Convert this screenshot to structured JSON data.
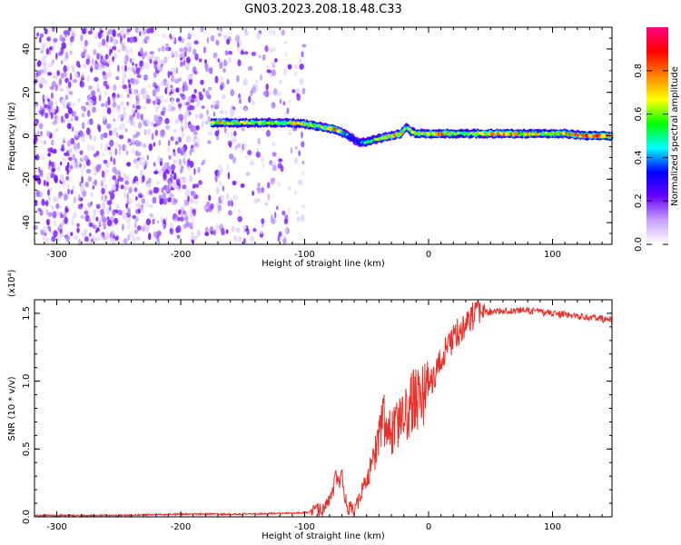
{
  "title": "GN03.2023.208.18.48.C33",
  "chart_data": [
    {
      "type": "heatmap",
      "xlabel": "Height of straight line (km)",
      "ylabel": "Frequency (Hz)",
      "xlim": [
        -318,
        148
      ],
      "ylim": [
        -50,
        50
      ],
      "xticks": [
        -300,
        -200,
        -100,
        0,
        100
      ],
      "xtick_labels": [
        "-300",
        "-200",
        "-100",
        "0",
        "100"
      ],
      "yticks": [
        -40,
        -20,
        0,
        20,
        40
      ],
      "ytick_labels": [
        "-40",
        "-20",
        "0",
        "20",
        "40"
      ],
      "colorbar": {
        "label": "Normalized spectral amplitude",
        "range": [
          0,
          1
        ],
        "ticks": [
          0.0,
          0.2,
          0.4,
          0.6,
          0.8
        ],
        "tick_labels": [
          "0.0",
          "0.2",
          "0.4",
          "0.6",
          "0.8"
        ],
        "colors": [
          "#ffffff",
          "#c8a0ff",
          "#6600ff",
          "#0000ff",
          "#00ffff",
          "#00ff00",
          "#ffff00",
          "#ff8000",
          "#ff0000",
          "#ff0080"
        ]
      },
      "noise_region_x": [
        -318,
        -100
      ],
      "trace": {
        "x": [
          -175,
          -150,
          -125,
          -110,
          -95,
          -85,
          -75,
          -68,
          -62,
          -57,
          -52,
          -45,
          -38,
          -30,
          -22,
          -18,
          -14,
          -10,
          -5,
          0,
          10,
          25,
          40,
          60,
          80,
          95,
          110,
          125,
          148
        ],
        "frequency": [
          6,
          6,
          6,
          6,
          5,
          4,
          3,
          1,
          -1,
          -3,
          -3,
          -2,
          -1,
          0,
          1,
          4,
          2,
          1,
          1,
          1,
          1,
          1,
          1,
          1,
          1,
          1,
          1,
          0,
          0
        ],
        "amplitude": [
          0.7,
          0.6,
          0.55,
          0.65,
          0.6,
          0.6,
          0.7,
          0.45,
          0.35,
          0.3,
          0.4,
          0.5,
          0.55,
          0.65,
          0.75,
          0.5,
          0.6,
          0.65,
          0.6,
          0.6,
          0.7,
          0.55,
          0.6,
          0.75,
          0.65,
          0.6,
          0.7,
          0.8,
          0.85
        ]
      }
    },
    {
      "type": "line",
      "xlabel": "Height of straight line (km)",
      "ylabel": "SNR (10 * v/v)",
      "y_multiplier": "(x10⁴)",
      "xlim": [
        -318,
        148
      ],
      "ylim": [
        0,
        1.6
      ],
      "xticks": [
        -300,
        -200,
        -100,
        0,
        100
      ],
      "xtick_labels": [
        "-300",
        "-200",
        "-100",
        "0",
        "100"
      ],
      "yticks": [
        0.0,
        0.5,
        1.0,
        1.5
      ],
      "ytick_labels": [
        "0.0",
        "0.5",
        "1.0",
        "1.5"
      ],
      "color": "#e8312a",
      "series": [
        {
          "name": "SNR",
          "x": [
            -318,
            -250,
            -200,
            -150,
            -100,
            -85,
            -80,
            -77,
            -75,
            -72,
            -70,
            -68,
            -65,
            -60,
            -57,
            -55,
            -50,
            -45,
            -40,
            -37,
            -35,
            -30,
            -25,
            -20,
            -15,
            -10,
            -5,
            0,
            5,
            10,
            15,
            20,
            25,
            30,
            35,
            40,
            50,
            60,
            70,
            80,
            90,
            100,
            110,
            120,
            130,
            140,
            148
          ],
          "y": [
            0.01,
            0.01,
            0.02,
            0.02,
            0.03,
            0.05,
            0.12,
            0.2,
            0.28,
            0.22,
            0.32,
            0.15,
            0.07,
            0.05,
            0.1,
            0.17,
            0.27,
            0.4,
            0.6,
            0.75,
            0.7,
            0.6,
            0.68,
            0.72,
            0.82,
            0.88,
            0.9,
            0.95,
            1.05,
            1.15,
            1.25,
            1.32,
            1.38,
            1.43,
            1.47,
            1.5,
            1.51,
            1.52,
            1.52,
            1.52,
            1.51,
            1.5,
            1.49,
            1.48,
            1.47,
            1.46,
            1.45
          ]
        }
      ]
    }
  ]
}
